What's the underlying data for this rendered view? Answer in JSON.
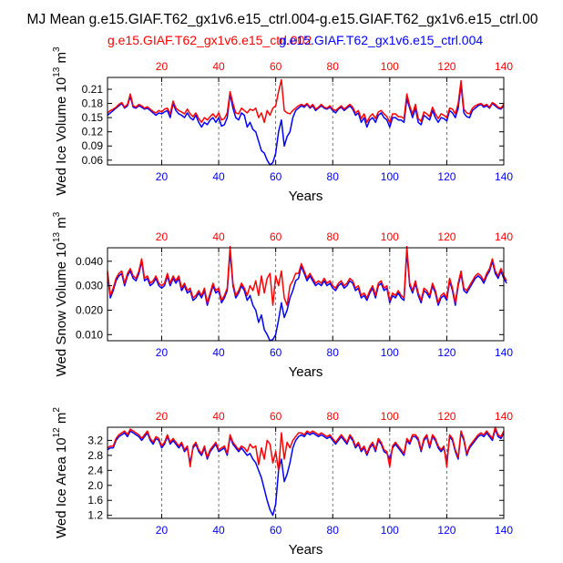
{
  "figure": {
    "title": "MJ Mean g.e15.GIAF.T62_gx1v6.e15_ctrl.004-g.e15.GIAF.T62_gx1v6.e15_ctrl.00",
    "legend_red": "g.e15.GIAF.T62_gx1v6.e15_ctrl.002",
    "legend_blue": "g.e15.GIAF.T62_gx1v6.e15_ctrl.004",
    "colors": {
      "red": "#ff0000",
      "blue": "#0000ff",
      "black": "#000000"
    }
  },
  "chart_data": [
    {
      "type": "line",
      "title": "",
      "xlabel": "Years",
      "ylabel_main": "Wed Ice Volume 10",
      "ylabel_exp": "13",
      "ylabel_unit": "m",
      "ylabel_unit_exp": "3",
      "xlim": [
        1,
        140
      ],
      "ylim": [
        0.05,
        0.235
      ],
      "x_ticks": [
        20,
        40,
        60,
        80,
        100,
        120,
        140
      ],
      "x_tick_labels": [
        "20",
        "40",
        "60",
        "80",
        "100",
        "120",
        "140"
      ],
      "y_ticks": [
        0.06,
        0.09,
        0.12,
        0.15,
        0.18,
        0.21
      ],
      "y_tick_labels": [
        "0.06",
        "0.09",
        "0.12",
        "0.15",
        "0.18",
        "0.21"
      ],
      "vgrid": [
        20,
        40,
        60,
        80,
        100,
        120
      ],
      "series": [
        {
          "name": "g.e15.GIAF.T62_gx1v6.e15_ctrl.004",
          "color": "#0000ff",
          "values": [
            0.155,
            0.16,
            0.165,
            0.17,
            0.175,
            0.18,
            0.17,
            0.175,
            0.195,
            0.172,
            0.17,
            0.175,
            0.172,
            0.168,
            0.17,
            0.165,
            0.16,
            0.155,
            0.16,
            0.158,
            0.162,
            0.165,
            0.15,
            0.18,
            0.165,
            0.158,
            0.155,
            0.15,
            0.16,
            0.15,
            0.145,
            0.155,
            0.14,
            0.13,
            0.14,
            0.135,
            0.145,
            0.15,
            0.14,
            0.15,
            0.132,
            0.135,
            0.15,
            0.2,
            0.17,
            0.15,
            0.145,
            0.16,
            0.155,
            0.13,
            0.14,
            0.125,
            0.12,
            0.1,
            0.08,
            0.075,
            0.06,
            0.05,
            0.055,
            0.075,
            0.12,
            0.145,
            0.09,
            0.11,
            0.12,
            0.15,
            0.165,
            0.17,
            0.175,
            0.172,
            0.178,
            0.17,
            0.175,
            0.165,
            0.17,
            0.175,
            0.17,
            0.168,
            0.172,
            0.165,
            0.16,
            0.168,
            0.172,
            0.165,
            0.17,
            0.175,
            0.168,
            0.155,
            0.16,
            0.14,
            0.15,
            0.13,
            0.145,
            0.15,
            0.14,
            0.155,
            0.16,
            0.15,
            0.145,
            0.13,
            0.15,
            0.15,
            0.145,
            0.145,
            0.14,
            0.19,
            0.17,
            0.15,
            0.17,
            0.14,
            0.135,
            0.155,
            0.15,
            0.145,
            0.165,
            0.15,
            0.14,
            0.15,
            0.148,
            0.143,
            0.165,
            0.16,
            0.15,
            0.17,
            0.22,
            0.16,
            0.152,
            0.15,
            0.165,
            0.17,
            0.175,
            0.178,
            0.172,
            0.175,
            0.17,
            0.18,
            0.175,
            0.17,
            0.168,
            0.175
          ]
        },
        {
          "name": "g.e15.GIAF.T62_gx1v6.e15_ctrl.002",
          "color": "#ff0000",
          "values": [
            0.16,
            0.165,
            0.168,
            0.172,
            0.178,
            0.182,
            0.172,
            0.178,
            0.2,
            0.175,
            0.172,
            0.178,
            0.175,
            0.17,
            0.173,
            0.168,
            0.163,
            0.16,
            0.165,
            0.162,
            0.168,
            0.17,
            0.158,
            0.185,
            0.17,
            0.165,
            0.162,
            0.158,
            0.168,
            0.158,
            0.152,
            0.16,
            0.148,
            0.14,
            0.15,
            0.145,
            0.152,
            0.158,
            0.15,
            0.16,
            0.145,
            0.148,
            0.16,
            0.205,
            0.18,
            0.16,
            0.158,
            0.17,
            0.165,
            0.16,
            0.168,
            0.165,
            0.17,
            0.15,
            0.16,
            0.14,
            0.165,
            0.155,
            0.17,
            0.175,
            0.205,
            0.23,
            0.165,
            0.16,
            0.158,
            0.165,
            0.17,
            0.175,
            0.178,
            0.175,
            0.18,
            0.172,
            0.178,
            0.168,
            0.172,
            0.178,
            0.172,
            0.17,
            0.175,
            0.168,
            0.165,
            0.17,
            0.175,
            0.168,
            0.173,
            0.178,
            0.172,
            0.16,
            0.165,
            0.148,
            0.158,
            0.14,
            0.152,
            0.158,
            0.148,
            0.162,
            0.165,
            0.158,
            0.152,
            0.14,
            0.158,
            0.158,
            0.152,
            0.152,
            0.148,
            0.2,
            0.175,
            0.158,
            0.178,
            0.148,
            0.142,
            0.162,
            0.158,
            0.152,
            0.172,
            0.158,
            0.148,
            0.158,
            0.155,
            0.15,
            0.17,
            0.168,
            0.158,
            0.18,
            0.228,
            0.168,
            0.16,
            0.158,
            0.17,
            0.175,
            0.178,
            0.18,
            0.175,
            0.178,
            0.172,
            0.182,
            0.178,
            0.172,
            0.17,
            0.178
          ]
        }
      ]
    },
    {
      "type": "line",
      "title": "",
      "xlabel": "Years",
      "ylabel_main": "Wed Snow Volume 10",
      "ylabel_exp": "13",
      "ylabel_unit": "m",
      "ylabel_unit_exp": "3",
      "xlim": [
        1,
        140
      ],
      "ylim": [
        0.0075,
        0.0455
      ],
      "x_ticks": [
        20,
        40,
        60,
        80,
        100,
        120,
        140
      ],
      "x_tick_labels": [
        "20",
        "40",
        "60",
        "80",
        "100",
        "120",
        "140"
      ],
      "y_ticks": [
        0.01,
        0.02,
        0.03,
        0.04
      ],
      "y_tick_labels": [
        "0.010",
        "0.020",
        "0.030",
        "0.040"
      ],
      "vgrid": [
        20,
        40,
        60,
        80,
        100,
        120
      ],
      "series": [
        {
          "name": "g.e15.GIAF.T62_gx1v6.e15_ctrl.004",
          "color": "#0000ff",
          "values": [
            0.035,
            0.025,
            0.028,
            0.032,
            0.034,
            0.035,
            0.03,
            0.034,
            0.036,
            0.033,
            0.032,
            0.035,
            0.04,
            0.032,
            0.033,
            0.03,
            0.031,
            0.033,
            0.03,
            0.029,
            0.03,
            0.034,
            0.03,
            0.033,
            0.031,
            0.033,
            0.028,
            0.03,
            0.027,
            0.028,
            0.024,
            0.025,
            0.027,
            0.025,
            0.028,
            0.022,
            0.026,
            0.03,
            0.027,
            0.028,
            0.023,
            0.025,
            0.028,
            0.044,
            0.03,
            0.025,
            0.027,
            0.03,
            0.028,
            0.024,
            0.026,
            0.022,
            0.02,
            0.015,
            0.018,
            0.012,
            0.01,
            0.0075,
            0.008,
            0.01,
            0.016,
            0.023,
            0.017,
            0.02,
            0.025,
            0.028,
            0.032,
            0.033,
            0.038,
            0.035,
            0.032,
            0.034,
            0.032,
            0.03,
            0.031,
            0.03,
            0.032,
            0.03,
            0.031,
            0.029,
            0.028,
            0.03,
            0.031,
            0.029,
            0.03,
            0.032,
            0.031,
            0.028,
            0.029,
            0.025,
            0.026,
            0.024,
            0.027,
            0.029,
            0.025,
            0.03,
            0.031,
            0.028,
            0.029,
            0.023,
            0.026,
            0.025,
            0.027,
            0.025,
            0.024,
            0.044,
            0.03,
            0.027,
            0.031,
            0.026,
            0.023,
            0.028,
            0.027,
            0.025,
            0.03,
            0.027,
            0.022,
            0.025,
            0.026,
            0.024,
            0.032,
            0.028,
            0.022,
            0.03,
            0.035,
            0.028,
            0.027,
            0.029,
            0.031,
            0.033,
            0.034,
            0.033,
            0.031,
            0.034,
            0.036,
            0.04,
            0.035,
            0.033,
            0.036,
            0.033,
            0.031
          ]
        },
        {
          "name": "g.e15.GIAF.T62_gx1v6.e15_ctrl.002",
          "color": "#ff0000",
          "values": [
            0.036,
            0.026,
            0.029,
            0.033,
            0.035,
            0.036,
            0.031,
            0.035,
            0.037,
            0.034,
            0.033,
            0.036,
            0.041,
            0.033,
            0.034,
            0.031,
            0.032,
            0.034,
            0.031,
            0.03,
            0.031,
            0.035,
            0.031,
            0.034,
            0.032,
            0.034,
            0.029,
            0.031,
            0.028,
            0.029,
            0.025,
            0.026,
            0.028,
            0.026,
            0.029,
            0.023,
            0.027,
            0.031,
            0.028,
            0.029,
            0.024,
            0.026,
            0.029,
            0.046,
            0.031,
            0.026,
            0.028,
            0.031,
            0.029,
            0.026,
            0.03,
            0.028,
            0.032,
            0.026,
            0.034,
            0.027,
            0.033,
            0.035,
            0.022,
            0.034,
            0.03,
            0.036,
            0.025,
            0.022,
            0.03,
            0.032,
            0.035,
            0.035,
            0.039,
            0.036,
            0.033,
            0.035,
            0.033,
            0.031,
            0.032,
            0.031,
            0.033,
            0.031,
            0.032,
            0.03,
            0.029,
            0.031,
            0.032,
            0.03,
            0.031,
            0.033,
            0.032,
            0.029,
            0.03,
            0.026,
            0.027,
            0.025,
            0.028,
            0.03,
            0.026,
            0.031,
            0.032,
            0.029,
            0.03,
            0.024,
            0.027,
            0.026,
            0.028,
            0.026,
            0.025,
            0.046,
            0.031,
            0.028,
            0.032,
            0.027,
            0.024,
            0.029,
            0.028,
            0.026,
            0.031,
            0.028,
            0.023,
            0.026,
            0.027,
            0.025,
            0.033,
            0.029,
            0.023,
            0.031,
            0.036,
            0.029,
            0.028,
            0.03,
            0.032,
            0.034,
            0.035,
            0.034,
            0.032,
            0.035,
            0.037,
            0.041,
            0.036,
            0.034,
            0.037,
            0.034,
            0.032
          ]
        }
      ]
    },
    {
      "type": "line",
      "title": "",
      "xlabel": "Years",
      "ylabel_main": "Wed Ice Area 10",
      "ylabel_exp": "12",
      "ylabel_unit": "m",
      "ylabel_unit_exp": "2",
      "xlim": [
        1,
        140
      ],
      "ylim": [
        1.12,
        3.55
      ],
      "x_ticks": [
        20,
        40,
        60,
        80,
        100,
        120,
        140
      ],
      "x_tick_labels": [
        "20",
        "40",
        "60",
        "80",
        "100",
        "120",
        "140"
      ],
      "y_ticks": [
        1.2,
        1.6,
        2.0,
        2.4,
        2.8,
        3.2
      ],
      "y_tick_labels": [
        "1.2",
        "1.6",
        "2.0",
        "2.4",
        "2.8",
        "3.2"
      ],
      "vgrid": [
        20,
        40,
        60,
        80,
        100,
        120
      ],
      "series": [
        {
          "name": "g.e15.GIAF.T62_gx1v6.e15_ctrl.004",
          "color": "#0000ff",
          "values": [
            2.95,
            3.0,
            3.0,
            3.2,
            3.3,
            3.35,
            3.4,
            3.3,
            3.45,
            3.4,
            3.35,
            3.3,
            3.2,
            3.3,
            3.4,
            3.2,
            3.1,
            3.25,
            3.2,
            3.0,
            3.1,
            3.3,
            3.1,
            3.2,
            3.1,
            3.0,
            3.1,
            2.9,
            3.0,
            2.6,
            3.0,
            3.1,
            2.9,
            2.8,
            3.0,
            2.7,
            2.9,
            3.0,
            3.1,
            2.9,
            2.95,
            3.0,
            2.8,
            3.3,
            3.1,
            3.0,
            2.9,
            3.0,
            2.9,
            2.8,
            2.85,
            2.7,
            2.6,
            2.4,
            2.2,
            1.9,
            1.6,
            1.35,
            1.2,
            1.5,
            2.4,
            2.7,
            2.1,
            2.3,
            2.6,
            3.0,
            3.2,
            3.3,
            3.35,
            3.3,
            3.4,
            3.35,
            3.4,
            3.35,
            3.3,
            3.35,
            3.3,
            3.25,
            3.3,
            3.2,
            3.1,
            3.2,
            3.3,
            3.2,
            3.1,
            3.3,
            3.2,
            3.0,
            3.1,
            2.9,
            3.0,
            2.8,
            3.0,
            3.1,
            2.9,
            3.2,
            3.1,
            2.9,
            2.85,
            2.7,
            3.0,
            3.1,
            3.0,
            2.9,
            2.8,
            3.2,
            3.1,
            3.3,
            3.3,
            3.2,
            2.9,
            3.2,
            3.3,
            3.0,
            3.3,
            3.2,
            3.0,
            2.9,
            3.0,
            2.6,
            3.3,
            3.2,
            2.9,
            2.7,
            3.4,
            3.2,
            2.8,
            3.0,
            3.1,
            3.2,
            3.3,
            3.35,
            3.3,
            3.4,
            3.3,
            3.2,
            3.5,
            3.3,
            3.25,
            3.4
          ]
        },
        {
          "name": "g.e15.GIAF.T62_gx1v6.e15_ctrl.002",
          "color": "#ff0000",
          "values": [
            3.0,
            3.05,
            3.05,
            3.25,
            3.35,
            3.4,
            3.45,
            3.35,
            3.5,
            3.45,
            3.4,
            3.35,
            3.25,
            3.35,
            3.45,
            3.25,
            3.15,
            3.3,
            3.25,
            3.05,
            3.15,
            3.35,
            3.15,
            3.25,
            3.15,
            3.05,
            3.15,
            2.95,
            3.05,
            2.5,
            3.05,
            3.15,
            2.95,
            2.85,
            3.05,
            2.75,
            2.95,
            3.05,
            3.15,
            2.95,
            3.0,
            3.05,
            2.85,
            3.35,
            3.15,
            3.05,
            2.95,
            3.05,
            3.0,
            2.9,
            3.1,
            3.0,
            3.05,
            2.55,
            3.0,
            2.7,
            3.2,
            3.1,
            2.6,
            2.9,
            2.4,
            3.4,
            2.7,
            3.15,
            3.0,
            3.2,
            3.3,
            3.4,
            3.4,
            3.35,
            3.45,
            3.4,
            3.45,
            3.4,
            3.35,
            3.4,
            3.35,
            3.3,
            3.35,
            3.25,
            3.15,
            3.25,
            3.35,
            3.25,
            3.15,
            3.35,
            3.25,
            3.05,
            3.15,
            2.95,
            3.05,
            2.85,
            3.05,
            3.15,
            2.95,
            3.25,
            3.15,
            2.95,
            2.9,
            2.5,
            3.05,
            3.15,
            3.05,
            2.95,
            2.85,
            3.25,
            3.15,
            3.35,
            3.35,
            3.25,
            2.95,
            3.25,
            3.35,
            3.05,
            3.35,
            3.25,
            3.05,
            2.95,
            3.05,
            2.5,
            3.35,
            3.25,
            2.95,
            2.75,
            3.45,
            3.25,
            2.85,
            3.05,
            3.15,
            3.25,
            3.35,
            3.4,
            3.35,
            3.45,
            3.35,
            3.25,
            3.55,
            3.35,
            3.3,
            3.45
          ]
        }
      ]
    }
  ]
}
